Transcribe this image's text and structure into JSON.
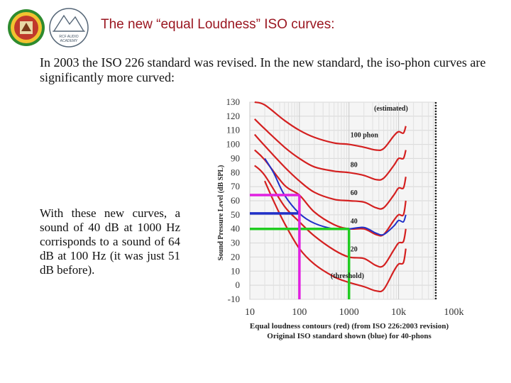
{
  "header": {
    "title": "The new “equal Loudness” ISO curves:",
    "logo_left": "university-seal",
    "logo_right": "mountain-logo",
    "logo_right_text": [
      "RCF AUDIO",
      "ACADEMY"
    ]
  },
  "intro_text": "In 2003 the ISO 226 standard was revised. In the new standard, the iso-phon curves are significantly more curved:",
  "side_text": "With these new curves, a sound of 40 dB at 1000 Hz corrisponds to a sound of 64 dB at 100 Hz (it was just 51 dB before).",
  "colors": {
    "title": "#9a1620",
    "iso2003": "#d42020",
    "original": "#2030c8",
    "highlight_green": "#22cc22",
    "highlight_magenta": "#e020e0",
    "highlight_blue": "#2030c8"
  },
  "chart_data": {
    "type": "line",
    "xscale": "log",
    "xlim": [
      10,
      100000
    ],
    "ylim": [
      -10,
      130
    ],
    "ylabel": "Sound Pressure Level (dB SPL)",
    "ytick_labels": [
      "130",
      "120",
      "110",
      "100",
      "90",
      "80",
      "70",
      "60",
      "50",
      "40",
      "30",
      "20",
      "10",
      "0",
      "-10"
    ],
    "xtick_labels": [
      "10",
      "100",
      "1000",
      "10k",
      "100k"
    ],
    "curve_labels": [
      {
        "text": "(estimated)",
        "x": 3000,
        "y": 124
      },
      {
        "text": "100 phon",
        "x": 1000,
        "y": 105
      },
      {
        "text": "80",
        "x": 1000,
        "y": 84
      },
      {
        "text": "60",
        "x": 1000,
        "y": 64
      },
      {
        "text": "40",
        "x": 1000,
        "y": 44
      },
      {
        "text": "20",
        "x": 1000,
        "y": 24
      },
      {
        "text": "(threshold)",
        "x": 400,
        "y": 5
      }
    ],
    "series": [
      {
        "name": "",
        "color": "red",
        "x": [
          12.5,
          20,
          50,
          100,
          200,
          500,
          1000,
          2000,
          3500,
          5000,
          8000,
          10000,
          12500,
          14000
        ],
        "y": [
          135,
          128,
          117,
          110,
          105,
          101,
          100,
          98,
          96,
          97,
          106,
          109,
          108,
          113
        ]
      },
      {
        "name": "",
        "color": "red",
        "x": [
          12.5,
          20,
          50,
          100,
          200,
          500,
          1000,
          2000,
          3500,
          5000,
          8000,
          10000,
          12500,
          14000
        ],
        "y": [
          118,
          111,
          98,
          90,
          84,
          81,
          80,
          78,
          75,
          76,
          85,
          90,
          90,
          96
        ]
      },
      {
        "name": "",
        "color": "red",
        "x": [
          12.5,
          20,
          50,
          100,
          200,
          500,
          1000,
          2000,
          3500,
          5000,
          8000,
          10000,
          12500,
          14000
        ],
        "y": [
          107,
          99,
          84,
          74,
          66,
          61,
          60,
          59,
          55,
          55,
          64,
          69,
          69,
          77
        ]
      },
      {
        "name": "",
        "color": "red",
        "x": [
          12.5,
          20,
          50,
          100,
          200,
          500,
          1000,
          2000,
          3500,
          5000,
          8000,
          10000,
          12500,
          14000
        ],
        "y": [
          96,
          89,
          71,
          64,
          52,
          43,
          40,
          40,
          36,
          36,
          46,
          50,
          50,
          60
        ]
      },
      {
        "name": "",
        "color": "red",
        "x": [
          12.5,
          20,
          50,
          100,
          200,
          500,
          1000,
          2000,
          3500,
          5000,
          8000,
          10000,
          12500,
          14000
        ],
        "y": [
          85,
          78,
          56,
          45,
          35,
          25,
          20,
          19,
          14,
          14,
          25,
          30,
          31,
          40
        ]
      },
      {
        "name": "",
        "color": "red",
        "x": [
          20,
          30,
          50,
          100,
          200,
          500,
          1000,
          2000,
          3500,
          5000,
          8000,
          10000,
          12500,
          14000
        ],
        "y": [
          74,
          60,
          44,
          26,
          15,
          6,
          2,
          -1,
          -4,
          -3,
          10,
          15,
          16,
          26
        ]
      },
      {
        "name": "",
        "color": "blue",
        "x": [
          20,
          30,
          50,
          100,
          200,
          500,
          1000,
          2000,
          3500,
          5000,
          8000,
          10000,
          12500,
          14000
        ],
        "y": [
          90,
          80,
          64,
          51,
          44,
          40,
          40,
          41,
          37,
          36,
          42,
          46,
          45,
          50
        ]
      }
    ],
    "annotations": [
      {
        "color": "green",
        "y": 40,
        "x": [
          10,
          1000
        ],
        "drop_to_x": 1000
      },
      {
        "color": "blue",
        "y": 51,
        "x": [
          10,
          100
        ]
      },
      {
        "color": "magenta",
        "y": 64,
        "x": [
          10,
          100
        ],
        "drop_to_x": 100
      }
    ],
    "caption": [
      "Equal loudness contours (red) (from ISO 226:2003 revision)",
      "Original ISO standard shown (blue) for 40-phons"
    ]
  }
}
